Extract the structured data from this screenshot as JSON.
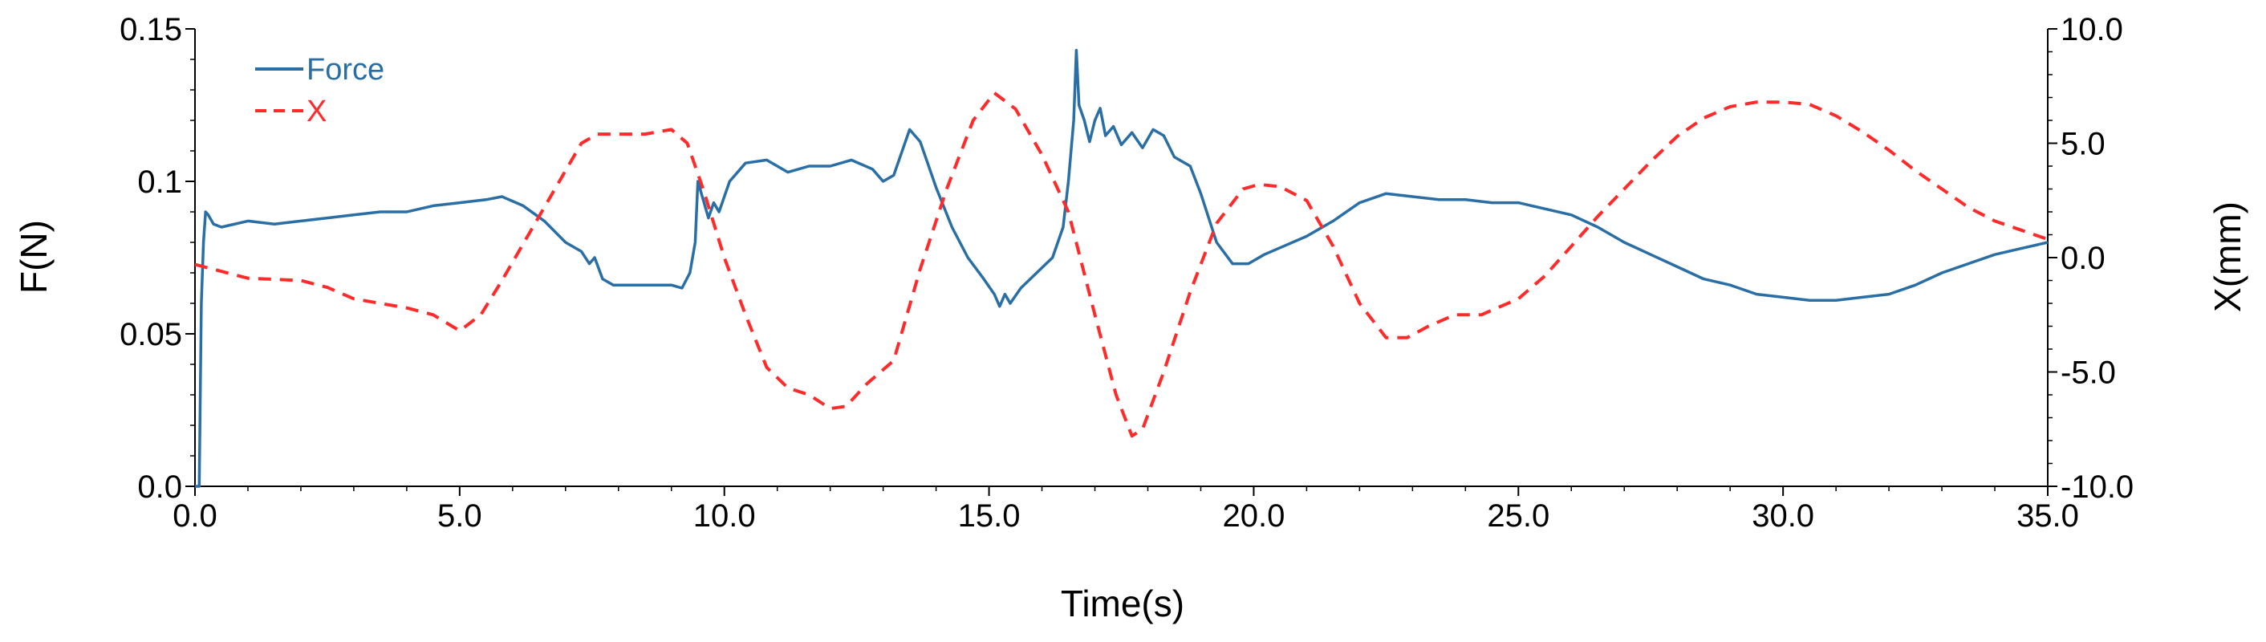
{
  "chart_data": {
    "type": "line",
    "title": "",
    "xlabel": "Time(s)",
    "ylabel_left": "F(N)",
    "ylabel_right": "X(mm)",
    "xlim": [
      0,
      35
    ],
    "ylim_left": [
      0,
      0.15
    ],
    "ylim_right": [
      -10,
      10
    ],
    "grid": false,
    "legend_position": "top-left",
    "x_ticks": [
      "0.0",
      "5.0",
      "10.0",
      "15.0",
      "20.0",
      "25.0",
      "30.0",
      "35.0"
    ],
    "x_tick_values": [
      0,
      5,
      10,
      15,
      20,
      25,
      30,
      35
    ],
    "y_left_ticks": [
      "0.0",
      "0.05",
      "0.1",
      "0.15"
    ],
    "y_left_tick_values": [
      0,
      0.05,
      0.1,
      0.15
    ],
    "y_right_ticks": [
      "-10.0",
      "-5.0",
      "0.0",
      "5.0",
      "10.0"
    ],
    "y_right_tick_values": [
      -10,
      -5,
      0,
      5,
      10
    ],
    "series": [
      {
        "name": "Force",
        "axis": "left",
        "color": "#2a6ea6",
        "style": "solid",
        "x": [
          0,
          0.08,
          0.12,
          0.16,
          0.2,
          0.25,
          0.35,
          0.5,
          1.0,
          1.5,
          2.0,
          2.5,
          3.0,
          3.5,
          4.0,
          4.5,
          5.0,
          5.5,
          5.8,
          6.2,
          6.6,
          7.0,
          7.3,
          7.45,
          7.55,
          7.7,
          7.9,
          8.5,
          9.0,
          9.2,
          9.35,
          9.45,
          9.5,
          9.6,
          9.7,
          9.8,
          9.9,
          10.1,
          10.4,
          10.8,
          11.2,
          11.6,
          12.0,
          12.4,
          12.8,
          13.0,
          13.2,
          13.5,
          13.7,
          14.0,
          14.3,
          14.6,
          14.9,
          15.1,
          15.2,
          15.3,
          15.4,
          15.6,
          15.9,
          16.2,
          16.4,
          16.5,
          16.6,
          16.65,
          16.7,
          16.8,
          16.9,
          17.0,
          17.1,
          17.2,
          17.35,
          17.5,
          17.7,
          17.9,
          18.1,
          18.3,
          18.5,
          18.8,
          19.0,
          19.3,
          19.6,
          19.9,
          20.2,
          20.6,
          21.0,
          21.5,
          22.0,
          22.5,
          23.0,
          23.5,
          24.0,
          24.5,
          25.0,
          25.5,
          26.0,
          26.5,
          27.0,
          27.5,
          28.0,
          28.5,
          29.0,
          29.5,
          30.0,
          30.5,
          31.0,
          31.5,
          32.0,
          32.5,
          33.0,
          33.5,
          34.0,
          34.5,
          35.0
        ],
        "values": [
          0.0,
          0.0,
          0.06,
          0.08,
          0.09,
          0.089,
          0.086,
          0.085,
          0.087,
          0.086,
          0.087,
          0.088,
          0.089,
          0.09,
          0.09,
          0.092,
          0.093,
          0.094,
          0.095,
          0.092,
          0.087,
          0.08,
          0.077,
          0.073,
          0.075,
          0.068,
          0.066,
          0.066,
          0.066,
          0.065,
          0.07,
          0.08,
          0.1,
          0.094,
          0.088,
          0.093,
          0.09,
          0.1,
          0.106,
          0.107,
          0.103,
          0.105,
          0.105,
          0.107,
          0.104,
          0.1,
          0.102,
          0.117,
          0.113,
          0.098,
          0.085,
          0.075,
          0.068,
          0.063,
          0.059,
          0.063,
          0.06,
          0.065,
          0.07,
          0.075,
          0.085,
          0.1,
          0.12,
          0.143,
          0.125,
          0.12,
          0.113,
          0.12,
          0.124,
          0.115,
          0.118,
          0.112,
          0.116,
          0.111,
          0.117,
          0.115,
          0.108,
          0.105,
          0.096,
          0.08,
          0.073,
          0.073,
          0.076,
          0.079,
          0.082,
          0.087,
          0.093,
          0.096,
          0.095,
          0.094,
          0.094,
          0.093,
          0.093,
          0.091,
          0.089,
          0.085,
          0.08,
          0.076,
          0.072,
          0.068,
          0.066,
          0.063,
          0.062,
          0.061,
          0.061,
          0.062,
          0.063,
          0.066,
          0.07,
          0.073,
          0.076,
          0.078,
          0.08
        ]
      },
      {
        "name": "X",
        "axis": "right",
        "color": "#ff2a2a",
        "style": "dashed",
        "x": [
          0,
          1.0,
          2.0,
          2.5,
          3.0,
          3.5,
          4.0,
          4.5,
          5.0,
          5.4,
          5.8,
          6.3,
          6.8,
          7.3,
          7.6,
          8.0,
          8.5,
          9.0,
          9.3,
          9.6,
          10.0,
          10.4,
          10.8,
          11.2,
          11.6,
          12.0,
          12.3,
          12.7,
          13.2,
          13.7,
          14.2,
          14.7,
          15.1,
          15.5,
          16.0,
          16.5,
          17.0,
          17.4,
          17.7,
          17.9,
          18.3,
          18.8,
          19.3,
          19.8,
          20.1,
          20.5,
          21.0,
          21.5,
          22.0,
          22.5,
          22.9,
          23.3,
          23.8,
          24.3,
          25.0,
          25.5,
          26.0,
          26.5,
          27.0,
          27.5,
          28.0,
          28.5,
          29.0,
          29.5,
          30.0,
          30.5,
          31.0,
          31.5,
          32.0,
          32.5,
          33.0,
          33.5,
          34.0,
          34.5,
          35.0
        ],
        "values": [
          -0.3,
          -0.9,
          -1.0,
          -1.3,
          -1.8,
          -2.0,
          -2.2,
          -2.5,
          -3.2,
          -2.5,
          -1.0,
          1.0,
          3.0,
          5.0,
          5.4,
          5.4,
          5.4,
          5.6,
          5.0,
          3.0,
          0.0,
          -2.5,
          -4.8,
          -5.7,
          -6.0,
          -6.6,
          -6.5,
          -5.5,
          -4.5,
          -0.5,
          3.0,
          6.0,
          7.2,
          6.5,
          4.5,
          2.0,
          -2.5,
          -6.0,
          -7.8,
          -7.5,
          -5.0,
          -1.5,
          1.5,
          3.0,
          3.2,
          3.1,
          2.5,
          0.5,
          -2.0,
          -3.5,
          -3.5,
          -3.0,
          -2.5,
          -2.5,
          -1.8,
          -0.8,
          0.5,
          1.8,
          3.0,
          4.2,
          5.3,
          6.1,
          6.6,
          6.8,
          6.8,
          6.7,
          6.2,
          5.5,
          4.7,
          3.8,
          3.0,
          2.2,
          1.6,
          1.2,
          0.8
        ]
      }
    ]
  }
}
